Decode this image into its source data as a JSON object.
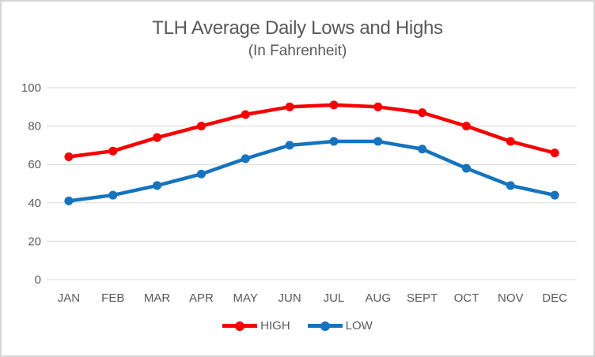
{
  "window": {
    "background": "#ffffff",
    "border_color": "#d6d6d6"
  },
  "chart_data": {
    "type": "line",
    "title": "TLH Average Daily Lows and Highs",
    "subtitle": "(In Fahrenheit)",
    "categories": [
      "JAN",
      "FEB",
      "MAR",
      "APR",
      "MAY",
      "JUN",
      "JUL",
      "AUG",
      "SEPT",
      "OCT",
      "NOV",
      "DEC"
    ],
    "series": [
      {
        "name": "HIGH",
        "color": "#f70000",
        "values": [
          64,
          67,
          74,
          80,
          86,
          90,
          91,
          90,
          87,
          80,
          72,
          66
        ]
      },
      {
        "name": "LOW",
        "color": "#1673bd",
        "values": [
          41,
          44,
          49,
          55,
          63,
          70,
          72,
          72,
          68,
          58,
          49,
          44
        ]
      }
    ],
    "xlabel": "",
    "ylabel": "",
    "ylim": [
      0,
      100
    ],
    "y_ticks": [
      0,
      20,
      40,
      60,
      80,
      100
    ],
    "grid": true,
    "legend_position": "bottom",
    "text_color": "#595959",
    "gridline_color": "#d9d9d9"
  }
}
